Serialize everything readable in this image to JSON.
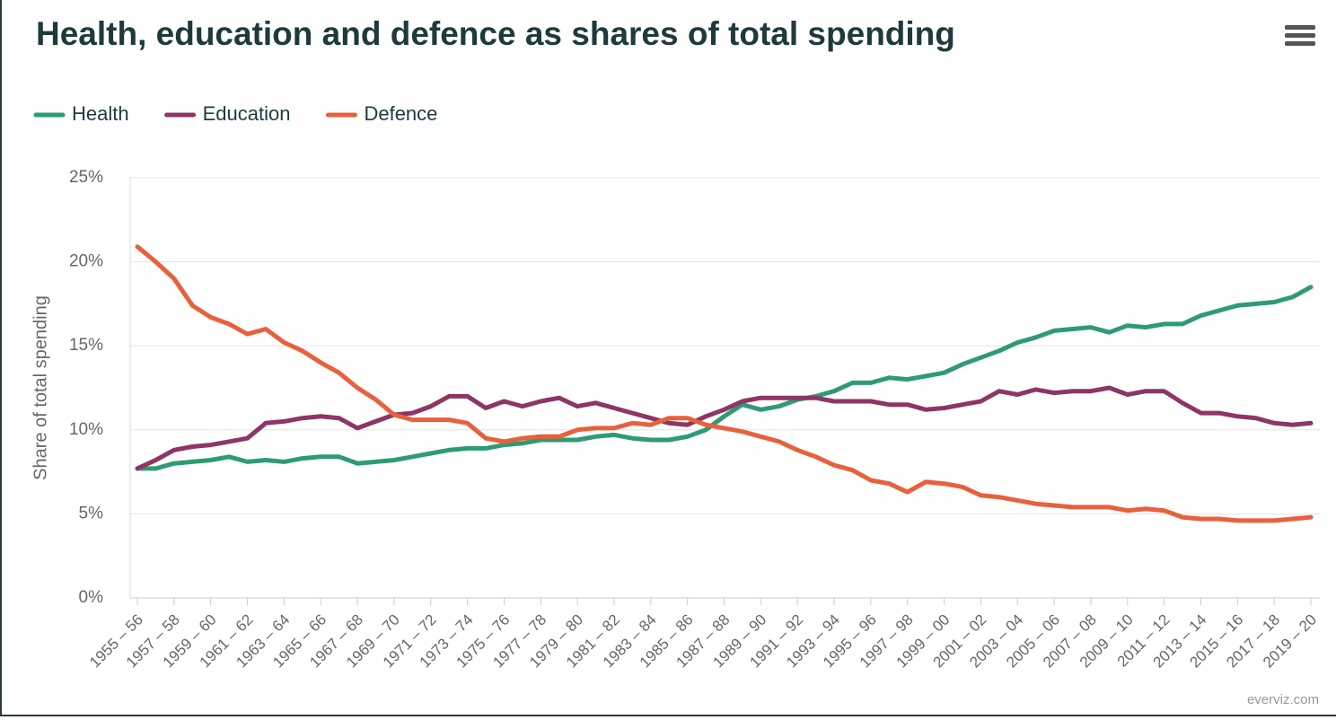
{
  "chart_data": {
    "type": "line",
    "title": "Health, education and defence as shares of total spending",
    "y_label": "Share of total spending",
    "credit": "everviz.com",
    "legend": "top-left",
    "grid": true,
    "categories": [
      "1955 – 56",
      null,
      "1957 – 58",
      null,
      "1959 – 60",
      null,
      "1961 – 62",
      null,
      "1963 – 64",
      null,
      "1965 – 66",
      null,
      "1967 – 68",
      null,
      "1969 – 70",
      null,
      "1971 – 72",
      null,
      "1973 – 74",
      null,
      "1975 – 76",
      null,
      "1977 – 78",
      null,
      "1979 – 80",
      null,
      "1981 – 82",
      null,
      "1983 – 84",
      null,
      "1985 – 86",
      null,
      "1987 – 88",
      null,
      "1989 – 90",
      null,
      "1991 – 92",
      null,
      "1993 – 94",
      null,
      "1995 – 96",
      null,
      "1997 – 98",
      null,
      "1999 – 00",
      null,
      "2001 – 02",
      null,
      "2003 – 04",
      null,
      "2005 – 06",
      null,
      "2007 – 08",
      null,
      "2009 – 10",
      null,
      "2011 – 12",
      null,
      "2013 – 14",
      null,
      "2015 – 16",
      null,
      "2017 – 18",
      null,
      "2019 – 20"
    ],
    "ylim": [
      0,
      25
    ],
    "yticks": [
      {
        "value": 0,
        "label": "0%"
      },
      {
        "value": 5,
        "label": "5%"
      },
      {
        "value": 10,
        "label": "10%"
      },
      {
        "value": 15,
        "label": "15%"
      },
      {
        "value": 20,
        "label": "20%"
      },
      {
        "value": 25,
        "label": "25%"
      }
    ],
    "series": [
      {
        "name": "Health",
        "color": "#2e9b73",
        "values": [
          7.7,
          7.7,
          8.0,
          8.1,
          8.2,
          8.4,
          8.1,
          8.2,
          8.1,
          8.3,
          8.4,
          8.4,
          8.0,
          8.1,
          8.2,
          8.4,
          8.6,
          8.8,
          8.9,
          8.9,
          9.1,
          9.2,
          9.4,
          9.4,
          9.4,
          9.6,
          9.7,
          9.5,
          9.4,
          9.4,
          9.6,
          10.0,
          10.8,
          11.5,
          11.2,
          11.4,
          11.8,
          12.0,
          12.3,
          12.8,
          12.8,
          13.1,
          13.0,
          13.2,
          13.4,
          13.9,
          14.3,
          14.7,
          15.2,
          15.5,
          15.9,
          16.0,
          16.1,
          15.8,
          16.2,
          16.1,
          16.3,
          16.3,
          16.8,
          17.1,
          17.4,
          17.5,
          17.6,
          17.9,
          18.5
        ]
      },
      {
        "name": "Education",
        "color": "#8e3566",
        "values": [
          7.7,
          8.2,
          8.8,
          9.0,
          9.1,
          9.3,
          9.5,
          10.4,
          10.5,
          10.7,
          10.8,
          10.7,
          10.1,
          10.5,
          10.9,
          11.0,
          11.4,
          12.0,
          12.0,
          11.3,
          11.7,
          11.4,
          11.7,
          11.9,
          11.4,
          11.6,
          11.3,
          11.0,
          10.7,
          10.4,
          10.3,
          10.8,
          11.2,
          11.7,
          11.9,
          11.9,
          11.9,
          11.9,
          11.7,
          11.7,
          11.7,
          11.5,
          11.5,
          11.2,
          11.3,
          11.5,
          11.7,
          12.3,
          12.1,
          12.4,
          12.2,
          12.3,
          12.3,
          12.5,
          12.1,
          12.3,
          12.3,
          11.6,
          11.0,
          11.0,
          10.8,
          10.7,
          10.4,
          10.3,
          10.4
        ]
      },
      {
        "name": "Defence",
        "color": "#e8603c",
        "values": [
          20.9,
          20.0,
          19.0,
          17.4,
          16.7,
          16.3,
          15.7,
          16.0,
          15.2,
          14.7,
          14.0,
          13.4,
          12.5,
          11.8,
          10.9,
          10.6,
          10.6,
          10.6,
          10.4,
          9.5,
          9.3,
          9.5,
          9.6,
          9.6,
          10.0,
          10.1,
          10.1,
          10.4,
          10.3,
          10.7,
          10.7,
          10.3,
          10.1,
          9.9,
          9.6,
          9.3,
          8.8,
          8.4,
          7.9,
          7.6,
          7.0,
          6.8,
          6.3,
          6.9,
          6.8,
          6.6,
          6.1,
          6.0,
          5.8,
          5.6,
          5.5,
          5.4,
          5.4,
          5.4,
          5.2,
          5.3,
          5.2,
          4.8,
          4.7,
          4.7,
          4.6,
          4.6,
          4.6,
          4.7,
          4.8
        ]
      }
    ]
  }
}
